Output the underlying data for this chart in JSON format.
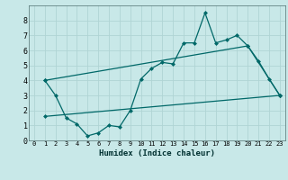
{
  "title": "",
  "xlabel": "Humidex (Indice chaleur)",
  "bg_color": "#c8e8e8",
  "grid_color": "#b0d4d4",
  "line_color": "#006868",
  "xlim": [
    -0.5,
    23.5
  ],
  "ylim": [
    0,
    9
  ],
  "xticks": [
    0,
    1,
    2,
    3,
    4,
    5,
    6,
    7,
    8,
    9,
    10,
    11,
    12,
    13,
    14,
    15,
    16,
    17,
    18,
    19,
    20,
    21,
    22,
    23
  ],
  "yticks": [
    0,
    1,
    2,
    3,
    4,
    5,
    6,
    7,
    8
  ],
  "series1_x": [
    1,
    2,
    3,
    4,
    5,
    6,
    7,
    8,
    9,
    10,
    11,
    12,
    13,
    14,
    15,
    16,
    17,
    18,
    19,
    20,
    21,
    22,
    23
  ],
  "series1_y": [
    4.0,
    3.0,
    1.5,
    1.1,
    0.3,
    0.5,
    1.0,
    0.9,
    2.0,
    4.1,
    4.8,
    5.2,
    5.1,
    6.5,
    6.5,
    8.5,
    6.5,
    6.7,
    7.0,
    6.3,
    5.3,
    4.1,
    3.0
  ],
  "series2_x": [
    1,
    23
  ],
  "series2_y": [
    1.6,
    3.0
  ],
  "series3_x": [
    1,
    20,
    23
  ],
  "series3_y": [
    4.0,
    6.3,
    3.0
  ],
  "figsize": [
    3.2,
    2.0
  ],
  "dpi": 100
}
